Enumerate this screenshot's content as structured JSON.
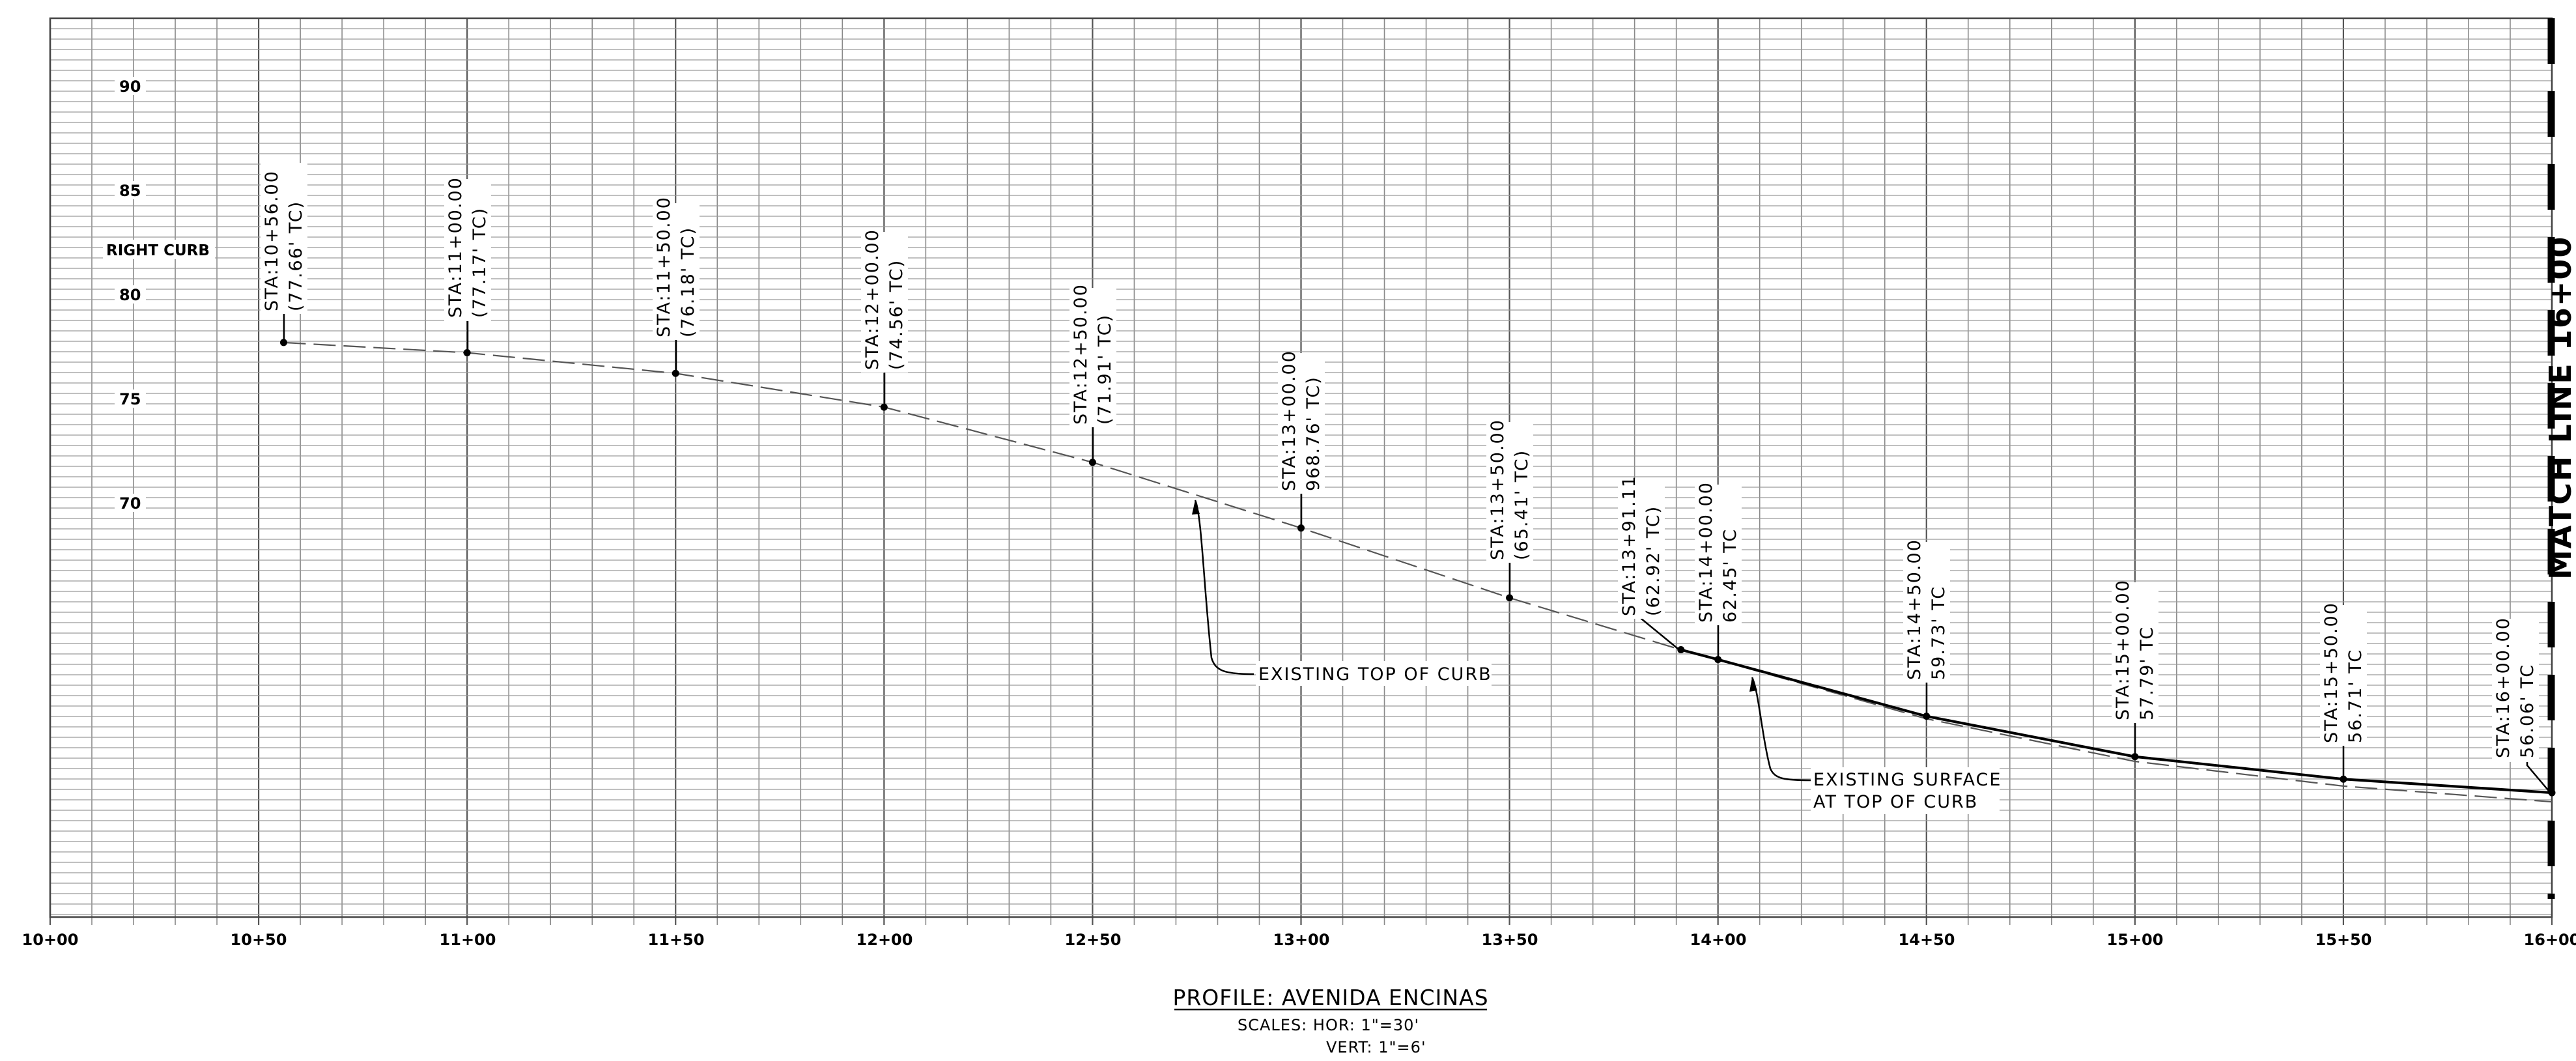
{
  "profile": {
    "title": "PROFILE: AVENIDA ENCINAS",
    "scales_line1": "SCALES:  HOR:  1\"=30'",
    "scales_line2": "VERT:  1\"=6'",
    "side_label": "RIGHT CURB",
    "match_line": "MATCH LINE 16+00",
    "elevation_labels": [
      "90",
      "85",
      "80",
      "75",
      "70"
    ],
    "station_labels": [
      "10+00",
      "10+50",
      "11+00",
      "11+50",
      "12+00",
      "12+50",
      "13+00",
      "13+50",
      "14+00",
      "14+50",
      "15+00",
      "15+50",
      "16+00"
    ],
    "callouts": [
      {
        "station": "STA:10+56.00",
        "elev": "(77.66' TC)"
      },
      {
        "station": "STA:11+00.00",
        "elev": "(77.17' TC)"
      },
      {
        "station": "STA:11+50.00",
        "elev": "(76.18' TC)"
      },
      {
        "station": "STA:12+00.00",
        "elev": "(74.56' TC)"
      },
      {
        "station": "STA:12+50.00",
        "elev": "(71.91' TC)"
      },
      {
        "station": "STA:13+00.00",
        "elev": "968.76' TC)"
      },
      {
        "station": "STA:13+50.00",
        "elev": "(65.41' TC)"
      },
      {
        "station": "STA:13+91.11",
        "elev": "(62.92' TC)"
      },
      {
        "station": "STA:14+00.00",
        "elev": "62.45' TC"
      },
      {
        "station": "STA:14+50.00",
        "elev": "59.73' TC"
      },
      {
        "station": "STA:15+00.00",
        "elev": "57.79' TC"
      },
      {
        "station": "STA:15+50.00",
        "elev": "56.71' TC"
      },
      {
        "station": "STA:16+00.00",
        "elev": "56.06' TC"
      }
    ],
    "notes": {
      "existing_top_of_curb": "EXISTING TOP OF CURB",
      "existing_surface_line1": "EXISTING SURFACE",
      "existing_surface_line2": "AT TOP OF CURB"
    },
    "chart_data": {
      "type": "line",
      "xlabel": "",
      "ylabel": "",
      "x_ticks": [
        "10+00",
        "10+50",
        "11+00",
        "11+50",
        "12+00",
        "12+50",
        "13+00",
        "13+50",
        "14+00",
        "14+50",
        "15+00",
        "15+50",
        "16+00"
      ],
      "y_ticks": [
        70,
        75,
        80,
        85,
        90
      ],
      "xlim": [
        1000,
        1600
      ],
      "grid": true,
      "series": [
        {
          "x": [
            1056,
            1100,
            1150,
            1200,
            1250,
            1300,
            1350,
            1391.11,
            1400,
            1450,
            1500,
            1550,
            1600
          ],
          "y": [
            77.66,
            77.17,
            76.18,
            74.56,
            71.91,
            68.76,
            65.41,
            62.92,
            62.45,
            59.73,
            57.79,
            56.71,
            56.06
          ]
        }
      ]
    }
  }
}
